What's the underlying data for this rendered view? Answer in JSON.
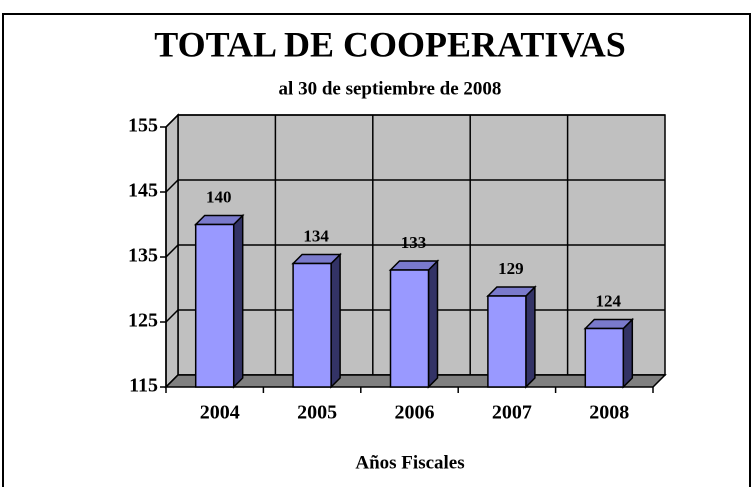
{
  "chart_data": {
    "type": "bar3d",
    "title": "TOTAL DE COOPERATIVAS",
    "subtitle": "al 30 de septiembre de 2008",
    "x_label": "Años Fiscales",
    "categories": [
      "2004",
      "2005",
      "2006",
      "2007",
      "2008"
    ],
    "values": [
      140,
      134,
      133,
      129,
      124
    ],
    "color": "#9999ff",
    "ylim": [
      115,
      155
    ],
    "yticks": [
      115,
      125,
      135,
      145,
      155
    ],
    "grid": true
  }
}
